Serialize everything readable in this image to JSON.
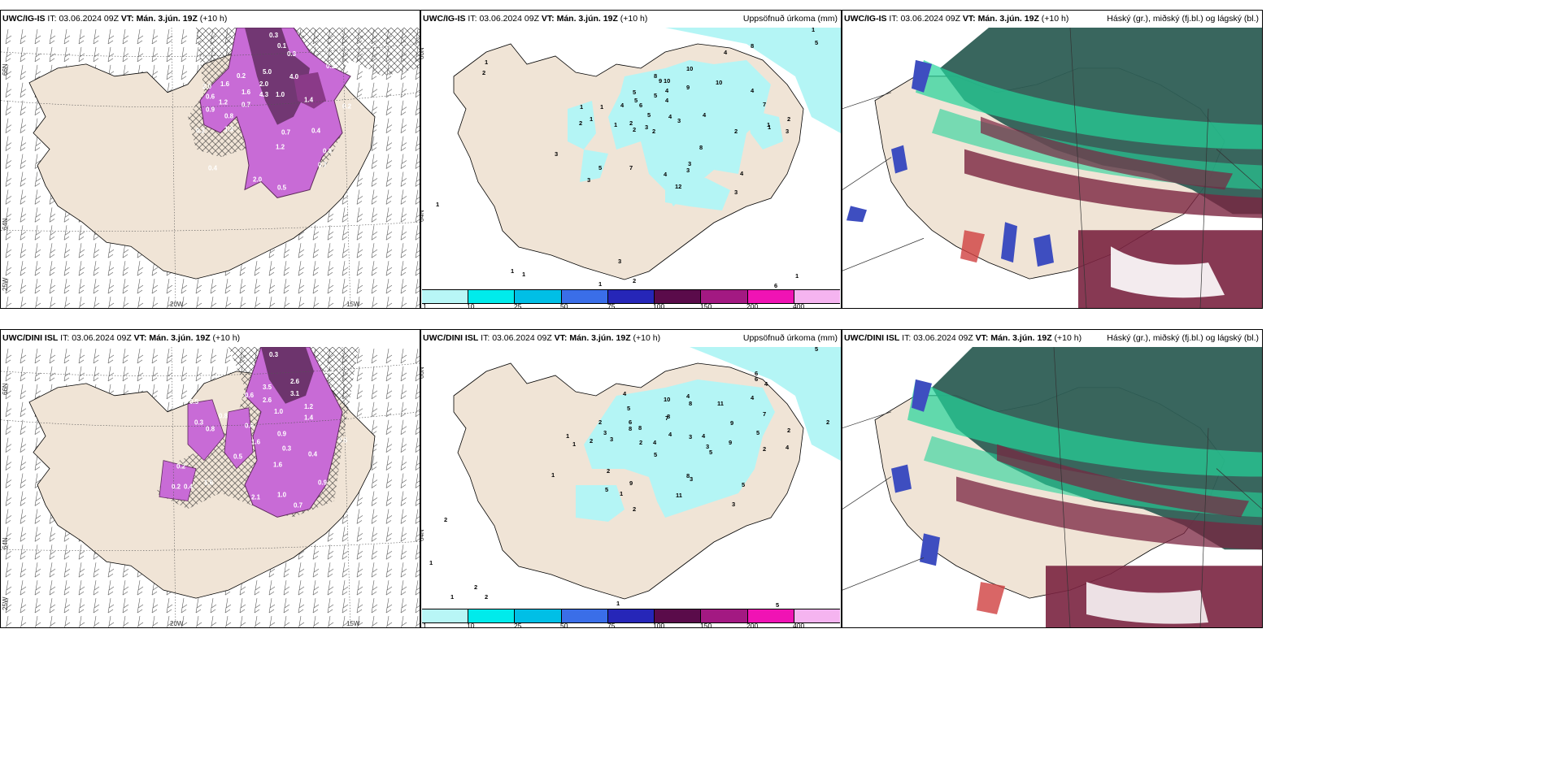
{
  "panels": {
    "top_left": {
      "model": "UWC/IG-IS",
      "it_label": "IT:",
      "it_value": "03.06.2024 09Z",
      "vt_label": "VT:",
      "vt_value": "Mán. 3.jún. 19Z",
      "lead": "(+10 h)"
    },
    "top_mid": {
      "model": "UWC/IG-IS",
      "it_label": "IT:",
      "it_value": "03.06.2024 09Z",
      "vt_label": "VT:",
      "vt_value": "Mán. 3.jún. 19Z",
      "lead": "(+10 h)",
      "right_title": "Uppsöfnuð úrkoma (mm)"
    },
    "top_right": {
      "model": "UWC/IG-IS",
      "it_label": "IT:",
      "it_value": "03.06.2024 09Z",
      "vt_label": "VT:",
      "vt_value": "Mán. 3.jún. 19Z",
      "lead": "(+10 h)",
      "right_title": "Háský (gr.), miðský (fj.bl.) og lágský (bl.)"
    },
    "bot_left": {
      "model": "UWC/DINI ISL",
      "it_label": "IT:",
      "it_value": "03.06.2024 09Z",
      "vt_label": "VT:",
      "vt_value": "Mán. 3.jún. 19Z",
      "lead": "(+10 h)"
    },
    "bot_mid": {
      "model": "UWC/DINI ISL",
      "it_label": "IT:",
      "it_value": "03.06.2024 09Z",
      "vt_label": "VT:",
      "vt_value": "Mán. 3.jún. 19Z",
      "lead": "(+10 h)",
      "right_title": "Uppsöfnuð úrkoma (mm)"
    },
    "bot_right": {
      "model": "UWC/DINI ISL",
      "it_label": "IT:",
      "it_value": "03.06.2024 09Z",
      "vt_label": "VT:",
      "vt_value": "Mán. 3.jún. 19Z",
      "lead": "(+10 h)",
      "right_title": "Háský (gr.), miðský (fj.bl.) og lágský (bl.)"
    }
  },
  "axis_labels": {
    "lon_20w": "20W",
    "lon_15w": "15W",
    "lat_66n": "66N",
    "lat_64n": "64N",
    "lon_25w": "25W"
  },
  "colorbar": {
    "ticks": [
      "1",
      "10",
      "25",
      "50",
      "75",
      "100",
      "150",
      "200",
      "400"
    ],
    "colors": [
      "#b8f6f6",
      "#00ebeb",
      "#00bfe6",
      "#3a6ee8",
      "#2626b8",
      "#5a0b4a",
      "#a31982",
      "#f013b4",
      "#f5b4f0"
    ]
  },
  "colors": {
    "land": "#f0e4d6",
    "precip_light": "#b4f5f5",
    "snow_purple": "#c86bd6",
    "snow_dark": "#5d2a5a",
    "cloud_high": "#2e5e55",
    "cloud_mid": "#7a2440",
    "cloud_low": "#3e4ec0",
    "cloud_green": "#24d49a"
  },
  "precip_labels_top": [
    "1",
    "2",
    "1",
    "1",
    "2",
    "1",
    "1",
    "2",
    "3",
    "4",
    "5",
    "5",
    "6",
    "8",
    "9",
    "10",
    "4",
    "4",
    "5",
    "5",
    "3",
    "2",
    "2",
    "4",
    "9",
    "10",
    "10",
    "4",
    "4",
    "4",
    "3",
    "8",
    "7",
    "2",
    "3",
    "3",
    "1",
    "2",
    "1",
    "5",
    "7",
    "3",
    "4",
    "12",
    "4",
    "3",
    "3",
    "8",
    "3",
    "1",
    "1",
    "1",
    "1",
    "2",
    "1",
    "6",
    "1",
    "5"
  ],
  "precip_labels_bot": [
    "1",
    "2",
    "2",
    "1",
    "1",
    "2",
    "3",
    "3",
    "4",
    "5",
    "6",
    "8",
    "10",
    "8",
    "8",
    "11",
    "9",
    "4",
    "6",
    "4",
    "4",
    "2",
    "4",
    "2",
    "8",
    "5",
    "7",
    "3",
    "5",
    "4",
    "5",
    "3",
    "7",
    "2",
    "3",
    "6",
    "4",
    "2",
    "9",
    "9",
    "5",
    "5",
    "11",
    "8",
    "3",
    "1",
    "2",
    "1",
    "1",
    "2",
    "2",
    "5",
    "5",
    "2",
    "4",
    "1"
  ],
  "snow_labels_top": [
    "0.3",
    "0.1",
    "0.3",
    "4.0",
    "5.0",
    "2.0",
    "0.2",
    "1.6",
    "0.6",
    "1.2",
    "1.6",
    "0.7",
    "0.9",
    "0.8",
    "0.2",
    "2.0",
    "0.7",
    "0.4",
    "1.2",
    "1.4",
    "0.4",
    "1.0",
    "0.3",
    "0.7",
    "2.0",
    "0.5",
    "0.2",
    "1.3",
    "0.2",
    "4.3"
  ],
  "snow_labels_bot": [
    "0.3",
    "1.2",
    "3.1",
    "2.6",
    "3.5",
    "2.6",
    "1.0",
    "1.4",
    "1.2",
    "1.6",
    "0.5",
    "0.8",
    "0.3",
    "0.8",
    "0.2",
    "0.9",
    "0.6",
    "0.4",
    "1.6",
    "0.5",
    "2.1",
    "1.0",
    "0.7",
    "0.9",
    "0.3",
    "0.4",
    "0.5",
    "0.6",
    "1.6",
    "0.2"
  ]
}
